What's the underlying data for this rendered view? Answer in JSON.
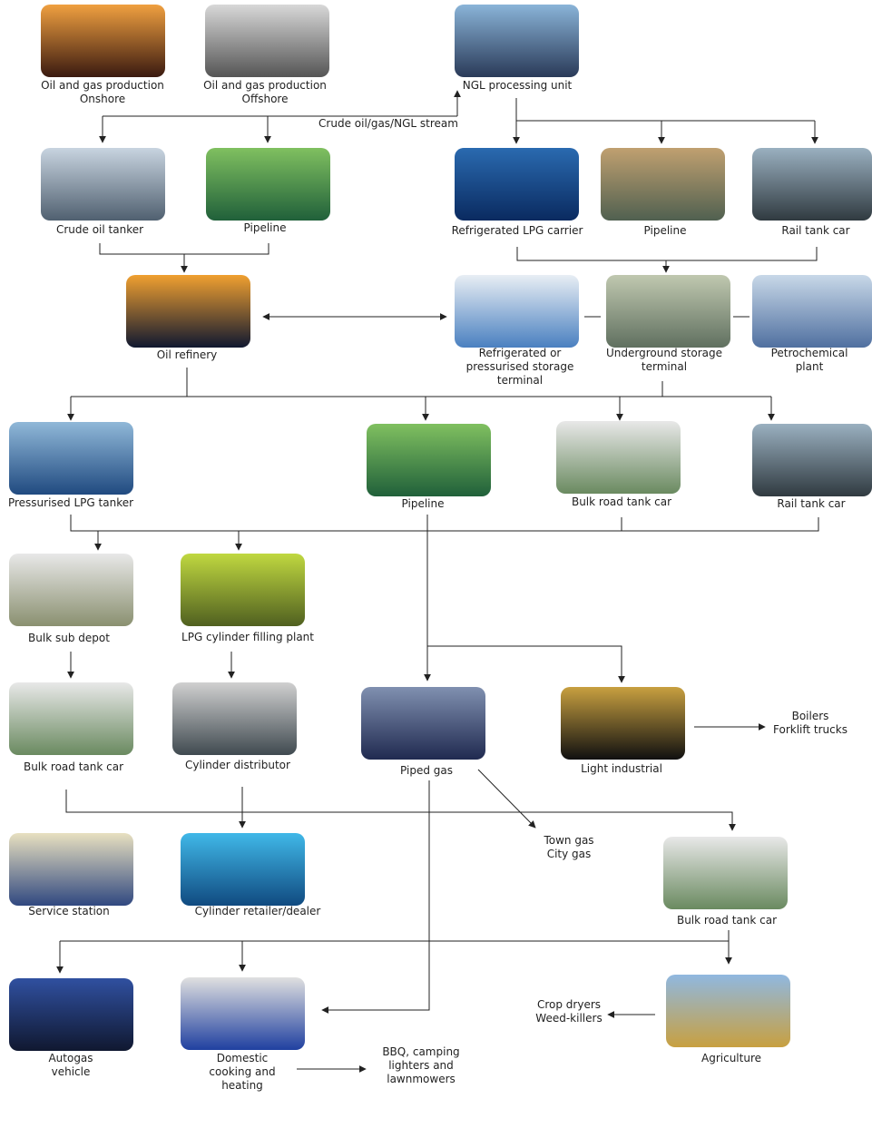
{
  "nodes": [
    {
      "label": [
        "Oil and gas production",
        "Onshore"
      ]
    },
    {
      "label": [
        "Oil and gas production",
        "Offshore"
      ]
    },
    {
      "label": [
        "NGL processing unit"
      ]
    },
    {
      "label": [
        "Crude oil tanker"
      ]
    },
    {
      "label": [
        "Pipeline"
      ]
    },
    {
      "label": [
        "Refrigerated LPG carrier"
      ]
    },
    {
      "label": [
        "Pipeline"
      ]
    },
    {
      "label": [
        "Rail tank car"
      ]
    },
    {
      "label": [
        "Oil refinery"
      ]
    },
    {
      "label": [
        "Refrigerated or",
        "pressurised storage",
        "terminal"
      ]
    },
    {
      "label": [
        "Underground storage",
        "terminal"
      ]
    },
    {
      "label": [
        "Petrochemical",
        "plant"
      ]
    },
    {
      "label": [
        "Pressurised LPG tanker"
      ]
    },
    {
      "label": [
        "Pipeline"
      ]
    },
    {
      "label": [
        "Bulk road tank car"
      ]
    },
    {
      "label": [
        "Rail tank car"
      ]
    },
    {
      "label": [
        "Bulk sub depot"
      ]
    },
    {
      "label": [
        "LPG cylinder filling plant"
      ]
    },
    {
      "label": [
        "Bulk road tank car"
      ]
    },
    {
      "label": [
        "Cylinder distributor"
      ]
    },
    {
      "label": [
        "Piped gas"
      ]
    },
    {
      "label": [
        "Light industrial"
      ]
    },
    {
      "label": [
        "Service station"
      ]
    },
    {
      "label": [
        "Cylinder retailer/dealer"
      ]
    },
    {
      "label": [
        "Bulk road tank car"
      ]
    },
    {
      "label": [
        "Autogas",
        "vehicle"
      ]
    },
    {
      "label": [
        "Domestic",
        "cooking and",
        "heating"
      ]
    },
    {
      "label": [
        "Agriculture"
      ]
    }
  ],
  "annotations": [
    {
      "label": [
        "Crude oil/gas/NGL stream"
      ]
    },
    {
      "label": [
        "Boilers",
        "Forklift trucks"
      ]
    },
    {
      "label": [
        "Town gas",
        "City gas"
      ]
    },
    {
      "label": [
        "Crop dryers",
        "Weed-killers"
      ]
    },
    {
      "label": [
        "BBQ, camping",
        "lighters and",
        "lawnmowers"
      ]
    }
  ]
}
